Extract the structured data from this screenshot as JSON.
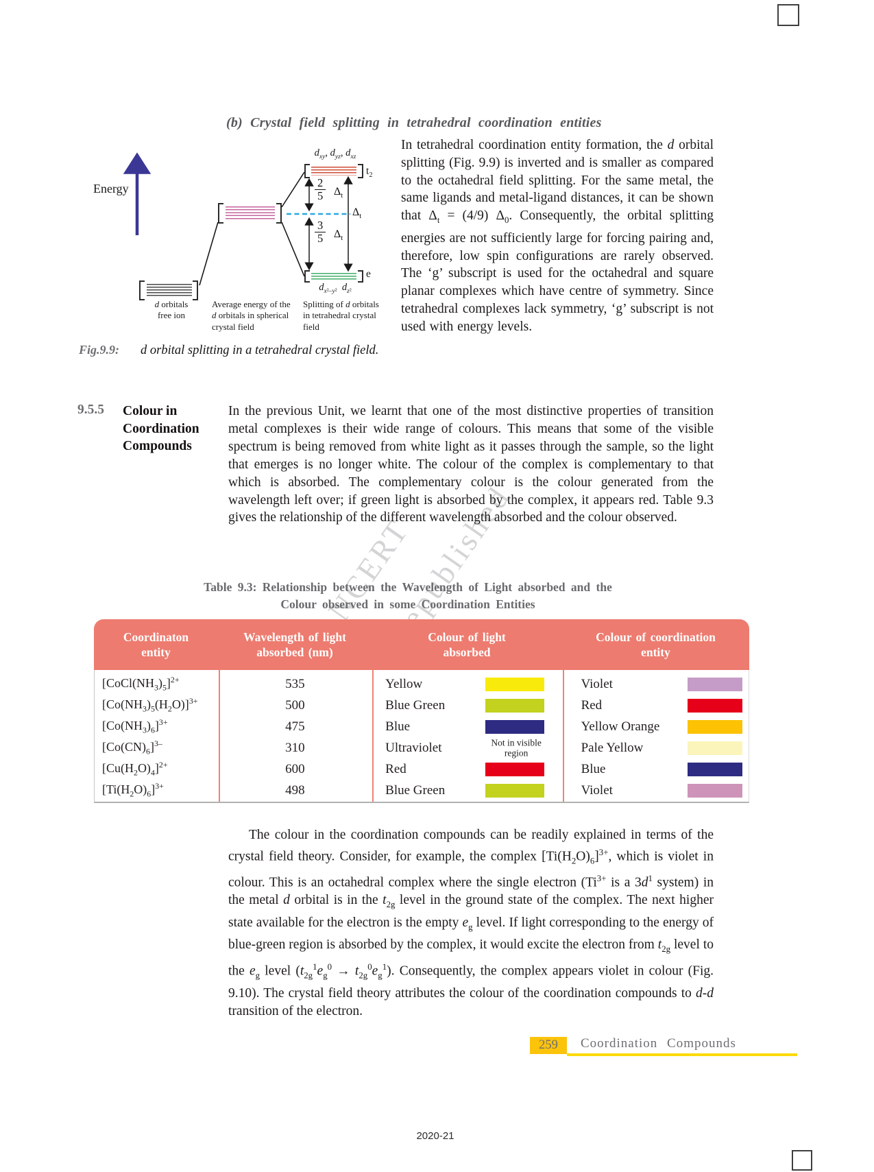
{
  "watermark": {
    "line1": "© NCERT",
    "line2": "not to be republished"
  },
  "section_b": {
    "heading": "(b) Crystal field splitting in tetrahedral coordination entities",
    "paragraph_html": "In tetrahedral coordination entity formation, the <i>d</i> orbital splitting (Fig. 9.9) is inverted and is smaller as compared to the octahedral field splitting. For the same metal, the same ligands and metal-ligand distances, it can be shown that Δ<sub>t</sub> = (4/9) Δ<sub>0</sub>. Consequently, the orbital splitting energies are not sufficiently large for forcing pairing and, therefore, low spin configurations are rarely observed. The ‘g’ subscript is used for the octahedral and square planar complexes which have centre of symmetry. Since tetrahedral complexes lack symmetry, ‘g’ subscript is not used with energy levels."
  },
  "figure": {
    "energy_axis_label": "Energy",
    "t2_orbital_labels_html": "<i>d<sub>xy</sub>, d<sub>yz</sub>, d<sub>xz</sub></i>",
    "t2_bracket_label_html": "t<sub>2</sub>",
    "e_bracket_label": "e",
    "e_orbital_labels_html": "<i>d</i><sub><i>x</i>²–<i>y</i>²</sub>&ensp;<i>d</i><sub><i>z</i>²</sub>",
    "upper_gap_numerator": "2",
    "upper_gap_denominator": "5",
    "lower_gap_numerator": "3",
    "lower_gap_denominator": "5",
    "delta_t_html": "Δ<sub>t</sub>",
    "caption_free_ion_html": "<i>d</i> orbitals<br>free ion",
    "caption_spherical_html": "Average energy of the<br><i>d</i> orbitals in spherical<br>crystal field",
    "caption_tetrahedral_html": "Splitting of <i>d</i> orbitals<br>in tetrahedral crystal<br>field",
    "fig_label": "Fig.9.9:",
    "fig_caption": "d orbital splitting in a tetrahedral crystal field."
  },
  "section_colour": {
    "number": "9.5.5",
    "title_html": "Colour in<br>Coordination<br>Compounds",
    "paragraph_html": "In the previous Unit, we learnt that one of the most distinctive properties of transition metal complexes is their wide range of colours. This means that some of the visible spectrum is being removed from white light as it passes through the sample, so the light that emerges is no longer white. The colour of the complex is complementary to that which is absorbed. The complementary colour is the colour generated from the wavelength left over; if green light is absorbed by the complex, it appears red. Table 9.3 gives the relationship of the different wavelength absorbed and the colour observed."
  },
  "table": {
    "title_line1": "Table 9.3: Relationship between the Wavelength of Light absorbed and the",
    "title_line2": "Colour observed in some Coordination Entities",
    "header_bg": "#ed7b6f",
    "headers": {
      "col1_html": "Coordinaton<br>entity",
      "col2_html": "Wavelength of light<br>absorbed (nm)",
      "col3_html": "Colour of light<br>absorbed",
      "col4_html": "Colour of coordination<br>entity"
    },
    "not_visible_note_html": "Not in visible<br>region",
    "rows": [
      {
        "entity_html": "[CoCl(NH<sub>3</sub>)<sub>5</sub>]<sup>2+</sup>",
        "wavelength": "535",
        "absorbed": "Yellow",
        "absorbed_swatch": "#f8eb0c",
        "observed": "Violet",
        "observed_swatch": "#c59cc7"
      },
      {
        "entity_html": "[Co(NH<sub>3</sub>)<sub>5</sub>(H<sub>2</sub>O)]<sup>3+</sup>",
        "wavelength": "500",
        "absorbed": "Blue Green",
        "absorbed_swatch": "#c2d21e",
        "observed": "Red",
        "observed_swatch": "#e60019"
      },
      {
        "entity_html": "[Co(NH<sub>3</sub>)<sub>6</sub>]<sup>3+</sup>",
        "wavelength": "475",
        "absorbed": "Blue",
        "absorbed_swatch": "#2e2b83",
        "observed": "Yellow Orange",
        "observed_swatch": "#fcc203"
      },
      {
        "entity_html": "[Co(CN)<sub>6</sub>]<sup>3–</sup>",
        "wavelength": "310",
        "absorbed": "Ultraviolet",
        "absorbed_swatch": null,
        "observed": "Pale Yellow",
        "observed_swatch": "#fbf5bb"
      },
      {
        "entity_html": "[Cu(H<sub>2</sub>O)<sub>4</sub>]<sup>2+</sup>",
        "wavelength": "600",
        "absorbed": "Red",
        "absorbed_swatch": "#e60019",
        "observed": "Blue",
        "observed_swatch": "#2e2b83"
      },
      {
        "entity_html": "[Ti(H<sub>2</sub>O)<sub>6</sub>]<sup>3+</sup>",
        "wavelength": "498",
        "absorbed": "Blue Green",
        "absorbed_swatch": "#c2d21e",
        "observed": "Violet",
        "observed_swatch": "#ce93b8"
      }
    ]
  },
  "closing": {
    "paragraph_html": "The colour in the coordination compounds can be readily explained in terms of the crystal field theory. Consider, for example, the complex [Ti(H<sub>2</sub>O)<sub>6</sub>]<sup>3+</sup>, which is violet in colour. This is an octahedral complex where the single electron (Ti<sup>3+</sup> is a 3<i>d</i><sup>1</sup> system) in the metal <i>d</i> orbital is in the <i>t</i><sub>2g</sub> level in the ground state of the complex. The next higher state available for the electron is the empty <i>e</i><sub>g</sub> level. If light corresponding to the energy of blue-green region is absorbed by the complex, it would excite the electron from <i>t</i><sub>2g</sub> level to the <i>e</i><sub>g</sub> level (<i>t</i><sub>2g</sub><sup>1</sup><i>e</i><sub>g</sub><sup>0</sup> → <i>t</i><sub>2g</sub><sup>0</sup><i>e</i><sub>g</sub><sup>1</sup>). Consequently, the complex appears violet in colour (Fig. 9.10). The crystal field theory attributes the colour of the coordination compounds to <i>d</i>-<i>d</i> transition of the electron."
  },
  "footer": {
    "page_number": "259",
    "chapter": "Coordination Compounds",
    "year_mark": "2020-21"
  }
}
